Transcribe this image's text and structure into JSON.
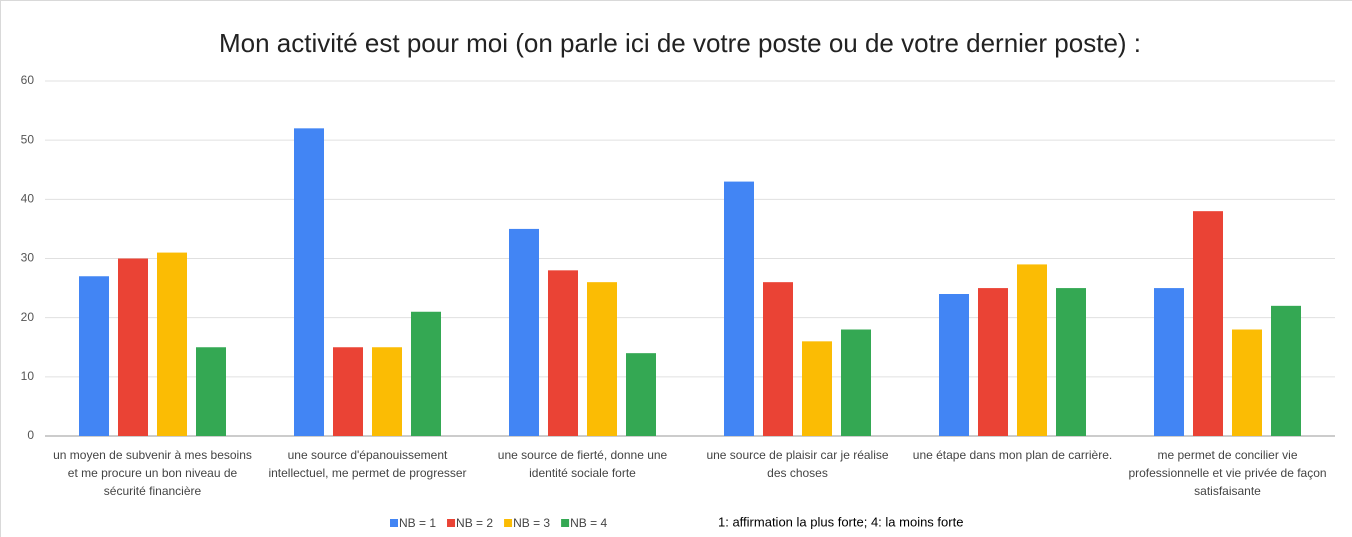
{
  "chart_data": {
    "type": "bar",
    "title": "Mon activité est pour moi (on parle ici de votre poste ou de votre dernier poste) :",
    "categories": [
      "un moyen de subvenir à mes besoins et me procure un bon niveau de sécurité financière",
      "une source d'épanouissement intellectuel, me permet de progresser",
      "une source de fierté, donne une identité sociale forte",
      "une source de plaisir car je réalise des choses",
      "une étape dans mon plan de carrière.",
      "me permet de concilier vie professionnelle et vie privée de façon satisfaisante"
    ],
    "series": [
      {
        "name": "NB = 1",
        "color": "#4285f4",
        "values": [
          27,
          52,
          35,
          43,
          24,
          25
        ]
      },
      {
        "name": "NB = 2",
        "color": "#ea4335",
        "values": [
          30,
          15,
          28,
          26,
          25,
          38
        ]
      },
      {
        "name": "NB = 3",
        "color": "#fbbc04",
        "values": [
          31,
          15,
          26,
          16,
          29,
          18
        ]
      },
      {
        "name": "NB = 4",
        "color": "#34a853",
        "values": [
          15,
          21,
          14,
          18,
          25,
          22
        ]
      }
    ],
    "ylim": [
      0,
      60
    ],
    "yticks": [
      0,
      10,
      20,
      30,
      40,
      50,
      60
    ],
    "grid": true,
    "legend": "bottom",
    "annotation": "1: affirmation la plus forte; 4: la moins forte"
  }
}
